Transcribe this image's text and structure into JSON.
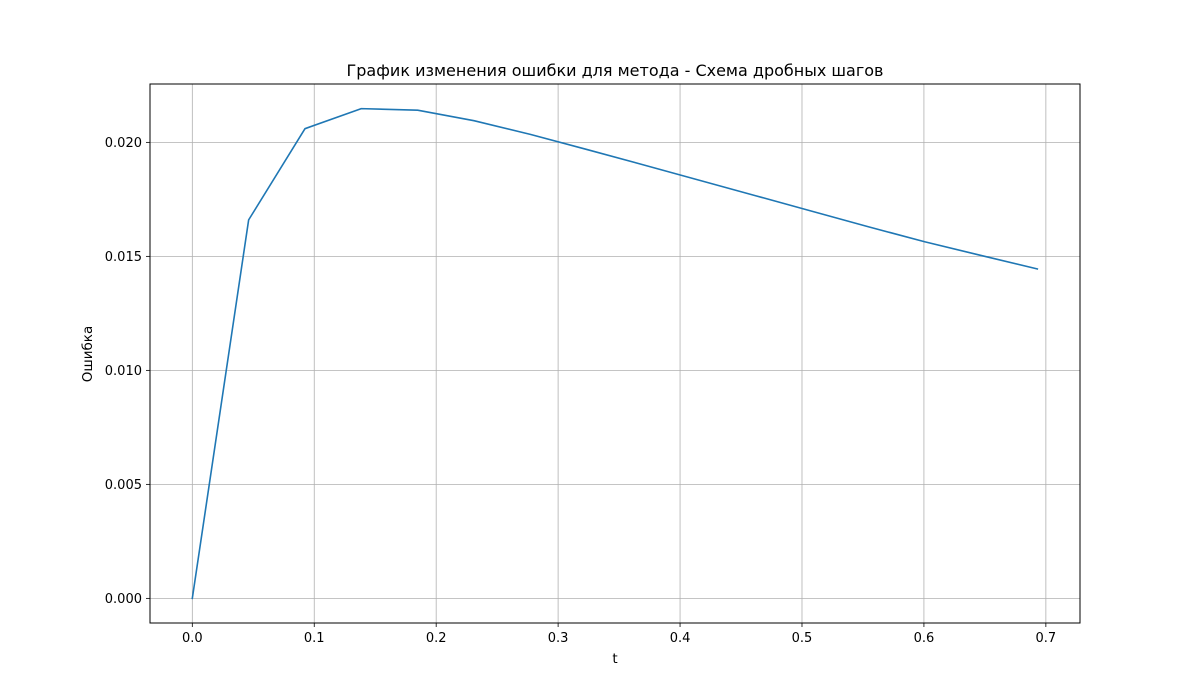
{
  "chart_data": {
    "type": "line",
    "title": "График изменения ошибки для метода - Схема дробных шагов",
    "xlabel": "t",
    "ylabel": "Ошибка",
    "xlim": [
      -0.0347,
      0.728
    ],
    "ylim": [
      -0.00108,
      0.02256
    ],
    "xticks": [
      0.0,
      0.1,
      0.2,
      0.3,
      0.4,
      0.5,
      0.6,
      0.7
    ],
    "xtick_labels": [
      "0.0",
      "0.1",
      "0.2",
      "0.3",
      "0.4",
      "0.5",
      "0.6",
      "0.7"
    ],
    "yticks": [
      0.0,
      0.005,
      0.01,
      0.015,
      0.02
    ],
    "ytick_labels": [
      "0.000",
      "0.005",
      "0.010",
      "0.015",
      "0.020"
    ],
    "grid": true,
    "series": [
      {
        "color": "#1f77b4",
        "x": [
          0.0,
          0.0462,
          0.0924,
          0.1386,
          0.1848,
          0.231,
          0.2772,
          0.3234,
          0.3696,
          0.4158,
          0.462,
          0.5082,
          0.5544,
          0.6006,
          0.6468,
          0.693
        ],
        "y": [
          0.0,
          0.0166,
          0.0206,
          0.02148,
          0.02141,
          0.02095,
          0.02035,
          0.01969,
          0.01902,
          0.01834,
          0.01766,
          0.01698,
          0.0163,
          0.01564,
          0.01504,
          0.01445
        ]
      }
    ]
  }
}
